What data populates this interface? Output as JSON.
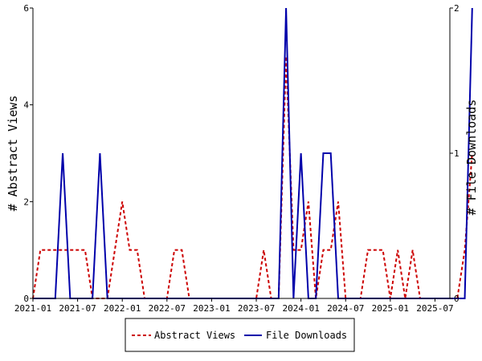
{
  "chart_data": {
    "type": "line",
    "title": "",
    "xlabel": "",
    "ylabel_left": "# Abstract Views",
    "ylabel_right": "# File Downloads",
    "x_tick_labels": [
      "2021-01",
      "2021-07",
      "2022-01",
      "2022-07",
      "2023-01",
      "2023-07",
      "2024-01",
      "2024-07",
      "2025-01",
      "2025-07"
    ],
    "x_tick_month_index": [
      0,
      6,
      12,
      18,
      24,
      30,
      36,
      42,
      48,
      54
    ],
    "x_range": [
      0,
      56
    ],
    "y_left": {
      "range": [
        0,
        6
      ],
      "ticks": [
        0,
        2,
        4,
        6
      ]
    },
    "y_right": {
      "range": [
        0,
        2
      ],
      "ticks": [
        0,
        1,
        2
      ]
    },
    "grid": false,
    "legend_position": "bottom-center",
    "series": [
      {
        "name": "Abstract Views",
        "axis": "left",
        "color": "#cc0000",
        "dash": "dashed",
        "values": [
          0,
          1,
          1,
          1,
          1,
          1,
          1,
          1,
          0,
          0,
          0,
          1,
          2,
          1,
          1,
          0,
          0,
          0,
          0,
          1,
          1,
          0,
          0,
          0,
          0,
          0,
          0,
          0,
          0,
          0,
          0,
          1,
          0,
          0,
          5,
          1,
          1,
          2,
          0,
          1,
          1,
          2,
          0,
          0,
          0,
          1,
          1,
          1,
          0,
          1,
          0,
          1,
          0,
          0,
          0,
          0,
          0,
          0,
          1,
          3
        ]
      },
      {
        "name": "File Downloads",
        "axis": "right",
        "color": "#0000aa",
        "dash": "solid",
        "values": [
          0,
          0,
          0,
          0,
          1,
          0,
          0,
          0,
          0,
          1,
          0,
          0,
          0,
          0,
          0,
          0,
          0,
          0,
          0,
          0,
          0,
          0,
          0,
          0,
          0,
          0,
          0,
          0,
          0,
          0,
          0,
          0,
          0,
          0,
          2,
          0,
          1,
          0,
          0,
          1,
          1,
          0,
          0,
          0,
          0,
          0,
          0,
          0,
          0,
          0,
          0,
          0,
          0,
          0,
          0,
          0,
          0,
          0,
          0,
          2
        ]
      }
    ],
    "colors": {
      "axis": "#000000",
      "background": "#ffffff"
    }
  }
}
